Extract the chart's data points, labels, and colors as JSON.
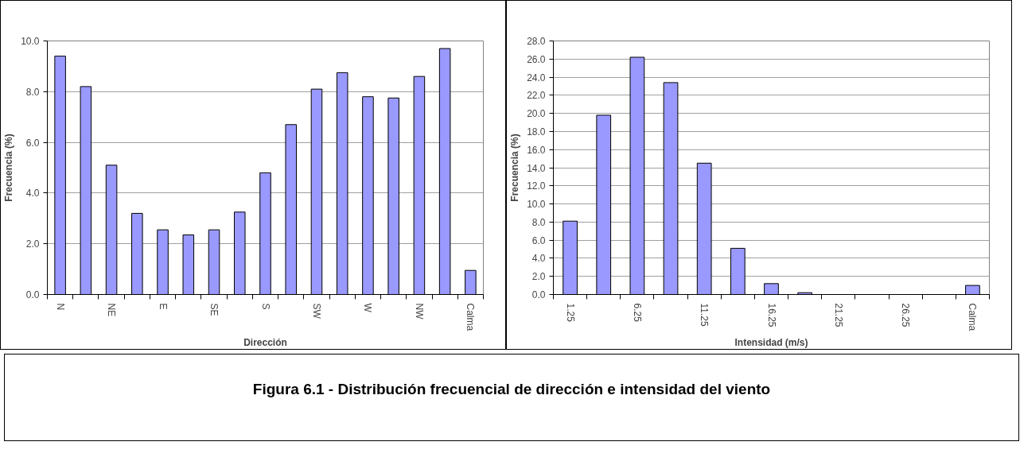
{
  "chart_data": [
    {
      "type": "bar",
      "xlabel": "Dirección",
      "ylabel": "Frecuencia (%)",
      "categories": [
        "N",
        null,
        "NE",
        null,
        "E",
        null,
        "SE",
        null,
        "S",
        null,
        "SW",
        null,
        "W",
        null,
        "NW",
        null,
        "Calma"
      ],
      "values": [
        9.4,
        8.2,
        5.1,
        3.2,
        2.55,
        2.35,
        2.55,
        3.25,
        4.8,
        6.7,
        8.1,
        8.75,
        7.8,
        7.75,
        8.6,
        9.7,
        0.95
      ],
      "color": "#9999ff",
      "ylim": [
        0,
        10
      ],
      "yticks": [
        {
          "value": 0,
          "label": "0.0"
        },
        {
          "value": 2,
          "label": "2.0"
        },
        {
          "value": 4,
          "label": "4.0"
        },
        {
          "value": 6,
          "label": "6.0"
        },
        {
          "value": 8,
          "label": "8.0"
        },
        {
          "value": 10,
          "label": "10.0"
        }
      ],
      "grid": "y",
      "annotations": [
        "Figura 6.1 - Distribución frecuencial de dirección e intensidad del viento"
      ]
    },
    {
      "type": "bar",
      "xlabel": "Intensidad (m/s)",
      "ylabel": "Frecuencia (%)",
      "categories": [
        "1.25",
        null,
        "6.25",
        null,
        "11.25",
        null,
        "16.25",
        null,
        "21.25",
        null,
        "26.25",
        null,
        "Calma"
      ],
      "values": [
        8.1,
        19.8,
        26.2,
        23.4,
        14.5,
        5.1,
        1.2,
        0.2,
        null,
        null,
        null,
        null,
        1.0
      ],
      "color": "#9999ff",
      "ylim": [
        0,
        28
      ],
      "yticks": [
        {
          "value": 0,
          "label": "0.0"
        },
        {
          "value": 2,
          "label": "2.0"
        },
        {
          "value": 4,
          "label": "4.0"
        },
        {
          "value": 6,
          "label": "6.0"
        },
        {
          "value": 8,
          "label": "8.0"
        },
        {
          "value": 10,
          "label": "10.0"
        },
        {
          "value": 12,
          "label": "12.0"
        },
        {
          "value": 14,
          "label": "14.0"
        },
        {
          "value": 16,
          "label": "16.0"
        },
        {
          "value": 18,
          "label": "18.0"
        },
        {
          "value": 20,
          "label": "20.0"
        },
        {
          "value": 22,
          "label": "22.0"
        },
        {
          "value": 24,
          "label": "24.0"
        },
        {
          "value": 26,
          "label": "26.0"
        },
        {
          "value": 28,
          "label": "28.0"
        }
      ],
      "grid": "y"
    }
  ]
}
